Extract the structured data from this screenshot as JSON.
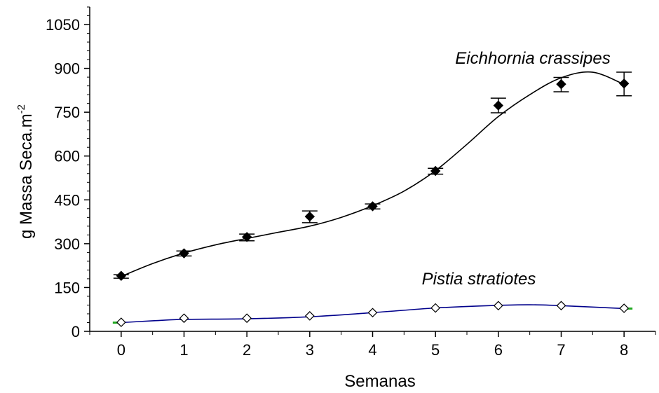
{
  "chart_data": {
    "type": "scatter",
    "xlabel": "Semanas",
    "ylabel": "g Massa Seca.m",
    "ylabel_superscript": "-2",
    "xlim": [
      -0.5,
      8.5
    ],
    "ylim": [
      0,
      1110
    ],
    "x_ticks": [
      0,
      1,
      2,
      3,
      4,
      5,
      6,
      7,
      8
    ],
    "x_tick_labels": [
      "0",
      "1",
      "2",
      "3",
      "4",
      "5",
      "6",
      "7",
      "8"
    ],
    "y_ticks": [
      0,
      150,
      300,
      450,
      600,
      750,
      900,
      1050
    ],
    "y_tick_labels": [
      "0",
      "150",
      "300",
      "450",
      "600",
      "750",
      "900",
      "1050"
    ],
    "grid": false,
    "legend": "none",
    "series": [
      {
        "name": "Eichhornia crassipes",
        "marker": "filled-diamond",
        "x": [
          0,
          1,
          2,
          3,
          4,
          5,
          6,
          7,
          8
        ],
        "y": [
          190,
          267,
          323,
          393,
          428,
          549,
          773,
          846,
          848
        ],
        "err_low": [
          182,
          258,
          310,
          372,
          419,
          538,
          748,
          820,
          806
        ],
        "err_high": [
          194,
          275,
          333,
          412,
          436,
          558,
          798,
          869,
          887
        ],
        "fit": [
          [
            0,
            188
          ],
          [
            0.5,
            232
          ],
          [
            1,
            268
          ],
          [
            1.5,
            296
          ],
          [
            2,
            318
          ],
          [
            2.5,
            339
          ],
          [
            3,
            360
          ],
          [
            3.5,
            390
          ],
          [
            4,
            430
          ],
          [
            4.5,
            480
          ],
          [
            5,
            550
          ],
          [
            5.5,
            640
          ],
          [
            6,
            735
          ],
          [
            6.5,
            810
          ],
          [
            7,
            868
          ],
          [
            7.5,
            887
          ],
          [
            8,
            845
          ]
        ],
        "color": "#000000"
      },
      {
        "name": "Pistia stratiotes",
        "marker": "open-diamond",
        "x": [
          0,
          1,
          2,
          3,
          4,
          5,
          6,
          7,
          8
        ],
        "y": [
          31,
          45,
          45,
          53,
          64,
          80,
          88,
          88,
          79
        ],
        "fit": [
          [
            0,
            30
          ],
          [
            0.5,
            36
          ],
          [
            1,
            41
          ],
          [
            2,
            43
          ],
          [
            3,
            50
          ],
          [
            4,
            64
          ],
          [
            5,
            80
          ],
          [
            6,
            89
          ],
          [
            6.5,
            91
          ],
          [
            7,
            88
          ],
          [
            8,
            78
          ]
        ],
        "color": "#00008b",
        "end_marker_color": "#22aa22"
      }
    ]
  }
}
